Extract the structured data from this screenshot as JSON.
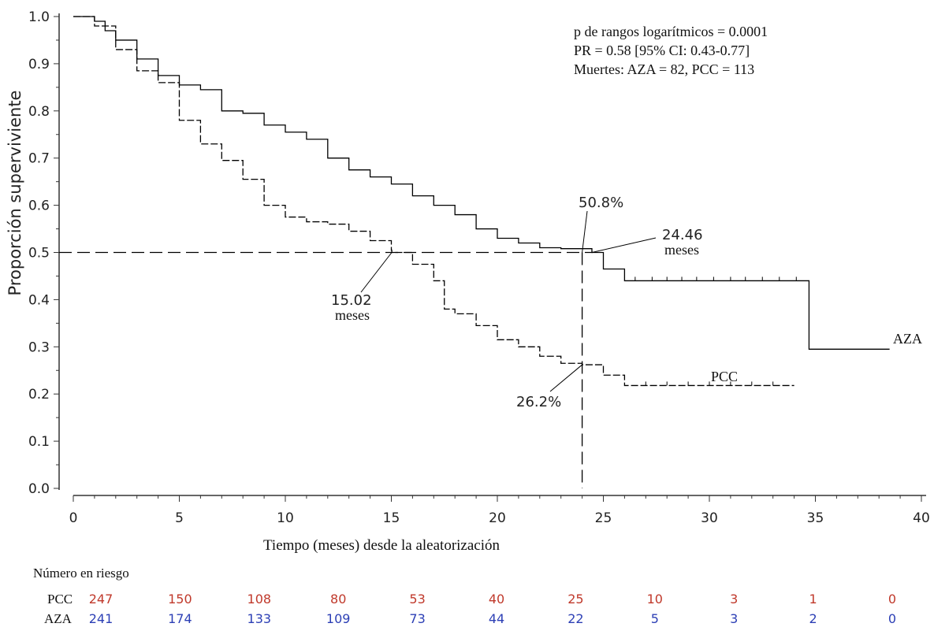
{
  "chart_data": {
    "type": "line",
    "xlabel": "Tiempo (meses) desde la aleatorización",
    "ylabel": "Proporción superviviente",
    "xlim": [
      0,
      40
    ],
    "ylim": [
      0.0,
      1.0
    ],
    "xticks": [
      0,
      5,
      10,
      15,
      20,
      25,
      30,
      35,
      40
    ],
    "yticks": [
      "0.0",
      "0.1",
      "0.2",
      "0.3",
      "0.4",
      "0.5",
      "0.6",
      "0.7",
      "0.8",
      "0.9",
      "1.0"
    ],
    "grid": false,
    "stats_lines": [
      "p de rangos logarítmicos = 0.0001",
      "PR = 0.58 [95% CI: 0.43-0.77]",
      "Muertes: AZA = 82, PCC = 113"
    ],
    "series": [
      {
        "name": "AZA",
        "color": "#000000",
        "dash": "solid",
        "points": [
          [
            0,
            1.0
          ],
          [
            1,
            0.99
          ],
          [
            1.5,
            0.97
          ],
          [
            2,
            0.95
          ],
          [
            3,
            0.91
          ],
          [
            4,
            0.875
          ],
          [
            5,
            0.855
          ],
          [
            6,
            0.845
          ],
          [
            7,
            0.8
          ],
          [
            8,
            0.795
          ],
          [
            9,
            0.77
          ],
          [
            10,
            0.755
          ],
          [
            11,
            0.74
          ],
          [
            12,
            0.7
          ],
          [
            13,
            0.675
          ],
          [
            14,
            0.66
          ],
          [
            15,
            0.645
          ],
          [
            16,
            0.62
          ],
          [
            17,
            0.6
          ],
          [
            18,
            0.58
          ],
          [
            19,
            0.55
          ],
          [
            20,
            0.53
          ],
          [
            21,
            0.52
          ],
          [
            22,
            0.51
          ],
          [
            23,
            0.508
          ],
          [
            24,
            0.508
          ],
          [
            24.46,
            0.5
          ],
          [
            25,
            0.465
          ],
          [
            26,
            0.44
          ],
          [
            28,
            0.44
          ],
          [
            30,
            0.44
          ],
          [
            34.7,
            0.44
          ],
          [
            34.7,
            0.295
          ],
          [
            38.5,
            0.295
          ]
        ],
        "label": "AZA"
      },
      {
        "name": "PCC",
        "color": "#000000",
        "dash": "dashed",
        "points": [
          [
            0,
            1.0
          ],
          [
            1,
            0.98
          ],
          [
            2,
            0.93
          ],
          [
            3,
            0.885
          ],
          [
            4,
            0.86
          ],
          [
            5,
            0.78
          ],
          [
            6,
            0.73
          ],
          [
            7,
            0.695
          ],
          [
            8,
            0.655
          ],
          [
            9,
            0.6
          ],
          [
            10,
            0.575
          ],
          [
            11,
            0.565
          ],
          [
            12,
            0.56
          ],
          [
            13,
            0.545
          ],
          [
            14,
            0.525
          ],
          [
            15,
            0.505
          ],
          [
            15.02,
            0.5
          ],
          [
            16,
            0.475
          ],
          [
            17,
            0.44
          ],
          [
            17.5,
            0.38
          ],
          [
            18,
            0.37
          ],
          [
            19,
            0.345
          ],
          [
            20,
            0.315
          ],
          [
            21,
            0.3
          ],
          [
            22,
            0.28
          ],
          [
            23,
            0.265
          ],
          [
            24,
            0.262
          ],
          [
            25,
            0.24
          ],
          [
            26,
            0.218
          ],
          [
            30,
            0.218
          ],
          [
            34,
            0.218
          ]
        ],
        "label": "PCC"
      }
    ],
    "reference_lines": {
      "horizontal_y": 0.5,
      "vertical_x": 24
    },
    "annotations": {
      "aza_pct": "50.8%",
      "pcc_pct": "26.2%",
      "aza_median_value": "24.46",
      "aza_median_unit": "meses",
      "pcc_median_value": "15.02",
      "pcc_median_unit": "meses"
    },
    "risk_table": {
      "title": "Número en riesgo",
      "rows": [
        {
          "label": "PCC",
          "color": "#c0392b",
          "values": [
            "247",
            "150",
            "108",
            "80",
            "53",
            "40",
            "25",
            "10",
            "3",
            "1",
            "0"
          ]
        },
        {
          "label": "AZA",
          "color": "#2c3fb5",
          "values": [
            "241",
            "174",
            "133",
            "109",
            "73",
            "44",
            "22",
            "5",
            "3",
            "2",
            "0"
          ]
        }
      ]
    }
  }
}
